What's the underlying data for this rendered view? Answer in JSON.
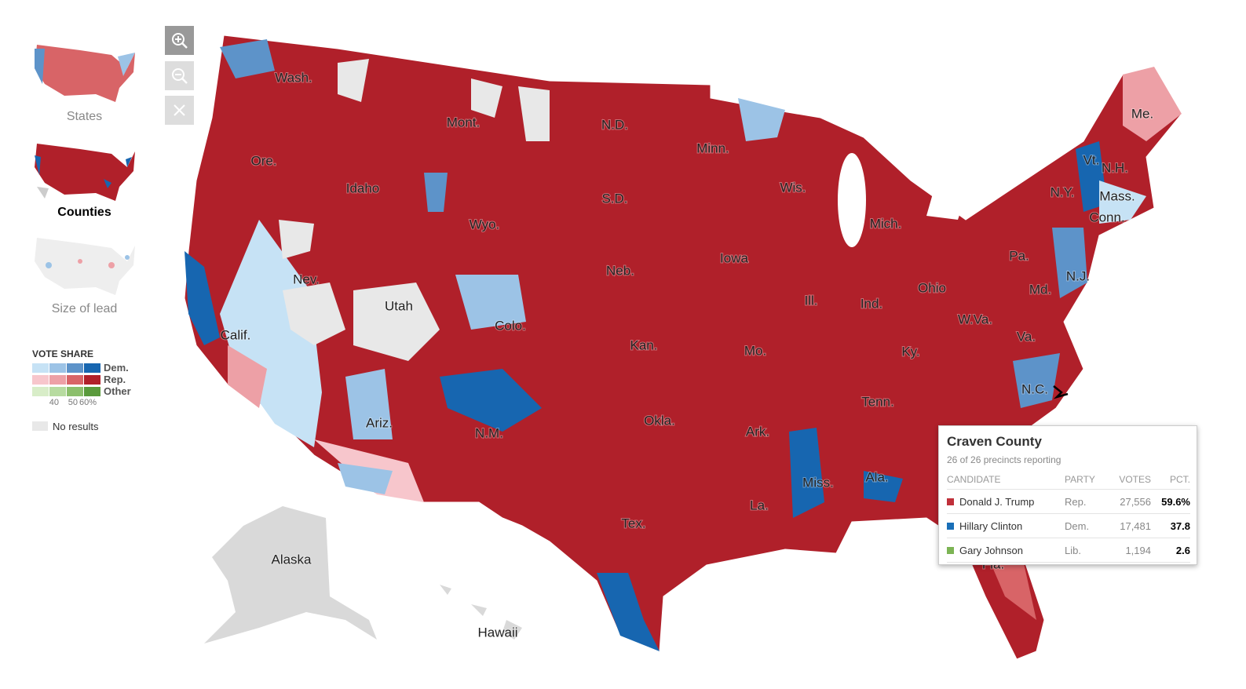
{
  "views": [
    "States",
    "Counties",
    "Size of lead"
  ],
  "legend": {
    "title": "VOTE SHARE",
    "rows": [
      {
        "label": "Dem.",
        "colors": [
          "#c6e2f5",
          "#9cc3e6",
          "#5d93c9",
          "#1766b0"
        ]
      },
      {
        "label": "Rep.",
        "colors": [
          "#f7c6cc",
          "#eda0a6",
          "#d86467",
          "#b0202a"
        ]
      },
      {
        "label": "Other",
        "colors": [
          "#d8edc8",
          "#b7dba0",
          "#8cbf6c",
          "#5a9a3c"
        ]
      }
    ],
    "scale": [
      "40",
      "50",
      "60%"
    ],
    "no_results": "No results"
  },
  "map_labels": [
    "Wash.",
    "Mont.",
    "N.D.",
    "Minn.",
    "Me.",
    "Ore.",
    "Idaho",
    "S.D.",
    "Wis.",
    "Vt.",
    "N.H.",
    "N.Y.",
    "Mass.",
    "Conn.",
    "Wyo.",
    "Mich.",
    "Iowa",
    "Pa.",
    "N.J.",
    "Nev.",
    "Neb.",
    "Utah",
    "Ill.",
    "Ind.",
    "Ohio",
    "Md.",
    "W.Va.",
    "Calif.",
    "Colo.",
    "Kan.",
    "Mo.",
    "Ky.",
    "Va.",
    "N.C.",
    "Tenn.",
    "Okla.",
    "Ark.",
    "Ariz.",
    "N.M.",
    "Miss.",
    "Ala.",
    "La.",
    "Tex.",
    "Fla.",
    "Alaska",
    "Hawaii"
  ],
  "tooltip": {
    "title": "Craven County",
    "subtitle": "26 of 26 precincts reporting",
    "columns": [
      "CANDIDATE",
      "PARTY",
      "VOTES",
      "PCT."
    ],
    "rows": [
      {
        "color": "#c0303a",
        "cells": [
          "Donald J. Trump",
          "Rep.",
          "27,556",
          "59.6%"
        ]
      },
      {
        "color": "#1a6fb8",
        "cells": [
          "Hillary Clinton",
          "Dem.",
          "17,481",
          "37.8"
        ]
      },
      {
        "color": "#7cb454",
        "cells": [
          "Gary Johnson",
          "Lib.",
          "1,194",
          "2.6"
        ]
      }
    ]
  }
}
